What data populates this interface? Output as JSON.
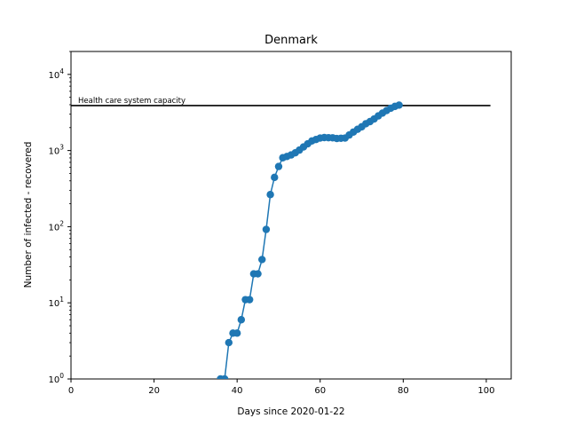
{
  "chart_data": {
    "type": "line",
    "title": "Denmark",
    "xlabel": "Days since 2020-01-22",
    "ylabel": "Number of infected - recovered",
    "yscale": "log",
    "xlim": [
      0,
      106
    ],
    "ylim": [
      1,
      20000
    ],
    "grid": false,
    "x_ticks": [
      0,
      20,
      40,
      60,
      80,
      100
    ],
    "x_tick_labels": [
      "0",
      "20",
      "40",
      "60",
      "80",
      "100"
    ],
    "y_ticks": [
      {
        "value": 1,
        "base": "10",
        "exp": "0"
      },
      {
        "value": 10,
        "base": "10",
        "exp": "1"
      },
      {
        "value": 100,
        "base": "10",
        "exp": "2"
      },
      {
        "value": 1000,
        "base": "10",
        "exp": "3"
      },
      {
        "value": 10000,
        "base": "10",
        "exp": "4"
      }
    ],
    "capacity_line": {
      "label": "Health care system capacity",
      "y": 3900,
      "x_start": 0,
      "x_end": 101,
      "color": "#000000"
    },
    "series": [
      {
        "color": "#1f77b4",
        "marker": "circle",
        "x": [
          36,
          37,
          38,
          39,
          40,
          41,
          42,
          43,
          44,
          45,
          46,
          47,
          48,
          49,
          50,
          51,
          52,
          53,
          54,
          55,
          56,
          57,
          58,
          59,
          60,
          61,
          62,
          63,
          64,
          65,
          66,
          67,
          68,
          69,
          70,
          71,
          72,
          73,
          74,
          75,
          76,
          77,
          78,
          79
        ],
        "y": [
          1,
          1,
          3,
          4,
          4,
          6,
          11,
          11,
          24,
          24,
          37,
          92,
          264,
          444,
          617,
          804,
          836,
          875,
          933,
          1014,
          1116,
          1225,
          1337,
          1395,
          1460,
          1480,
          1475,
          1470,
          1440,
          1450,
          1460,
          1600,
          1750,
          1900,
          2050,
          2250,
          2400,
          2600,
          2850,
          3100,
          3350,
          3600,
          3800,
          3950
        ]
      }
    ]
  }
}
